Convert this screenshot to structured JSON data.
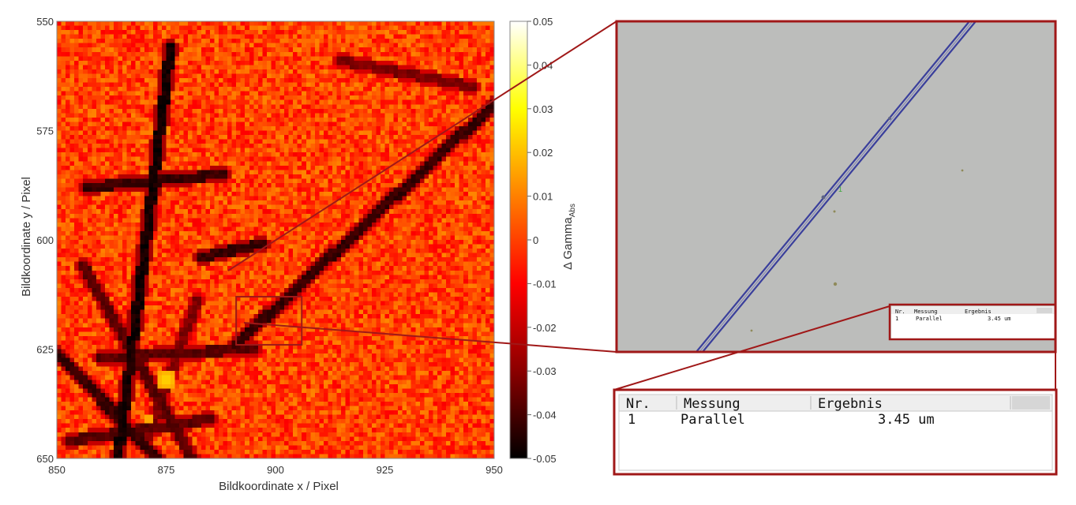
{
  "chart_data": {
    "type": "heatmap",
    "xlabel": "Bildkoordinate x / Pixel",
    "ylabel": "Bildkoordinate y / Pixel",
    "xlim": [
      850,
      950
    ],
    "ylim": [
      550,
      650
    ],
    "x_ticks": [
      "850",
      "875",
      "900",
      "925",
      "950"
    ],
    "y_ticks": [
      "550",
      "575",
      "600",
      "625",
      "650"
    ],
    "colorbar": {
      "label_main": "Δ Gamma",
      "label_sub": "Abs",
      "range": [
        -0.05,
        0.05
      ],
      "ticks": [
        "0.05",
        "0.04",
        "0.03",
        "0.02",
        "0.01",
        "0",
        "-0.01",
        "-0.02",
        "-0.03",
        "-0.04",
        "-0.05"
      ],
      "colormap": [
        "#000000",
        "#8b0000",
        "#ff0000",
        "#ff8000",
        "#ffff00",
        "#ffffff"
      ]
    },
    "background_value": 0.0,
    "features": [
      {
        "kind": "dark-line",
        "from": [
          876,
          556
        ],
        "to": [
          864,
          650
        ],
        "value": -0.05
      },
      {
        "kind": "dark-line",
        "from": [
          891,
          624
        ],
        "to": [
          950,
          569
        ],
        "value": -0.045
      },
      {
        "kind": "dark-line",
        "from": [
          850,
          626
        ],
        "to": [
          873,
          650
        ],
        "value": -0.045
      },
      {
        "kind": "dark-line",
        "from": [
          856,
          606
        ],
        "to": [
          881,
          650
        ],
        "value": -0.04
      },
      {
        "kind": "dark-line",
        "from": [
          857,
          588
        ],
        "to": [
          888,
          585
        ],
        "value": -0.045
      },
      {
        "kind": "dark-line",
        "from": [
          883,
          604
        ],
        "to": [
          897,
          601
        ],
        "value": -0.045
      },
      {
        "kind": "dark-line",
        "from": [
          853,
          646
        ],
        "to": [
          885,
          641
        ],
        "value": -0.04
      },
      {
        "kind": "dark-line",
        "from": [
          860,
          627
        ],
        "to": [
          895,
          625
        ],
        "value": -0.04
      },
      {
        "kind": "dark-line",
        "from": [
          882,
          614
        ],
        "to": [
          870,
          647
        ],
        "value": -0.035
      },
      {
        "kind": "dark-line",
        "from": [
          915,
          559
        ],
        "to": [
          945,
          565
        ],
        "value": -0.035
      },
      {
        "kind": "bright-spot",
        "center": [
          875,
          632
        ],
        "radius": 2.5,
        "value": 0.025
      },
      {
        "kind": "bright-spot",
        "center": [
          871,
          641
        ],
        "radius": 1.5,
        "value": 0.02
      }
    ],
    "zoom_box": {
      "x": [
        891,
        906
      ],
      "y": [
        613,
        624
      ]
    }
  },
  "measurement_table": {
    "headers": [
      "Nr.",
      "Messung",
      "Ergebnis"
    ],
    "rows": [
      {
        "nr": "1",
        "messung": "Parallel",
        "ergebnis": "3.45 um"
      }
    ]
  },
  "micrograph_label": "1",
  "colors": {
    "callout": "#a01818",
    "micro_background": "#bcbdbb",
    "fiber": "#3a3f9c",
    "table_header_bg": "#eeeeee"
  }
}
